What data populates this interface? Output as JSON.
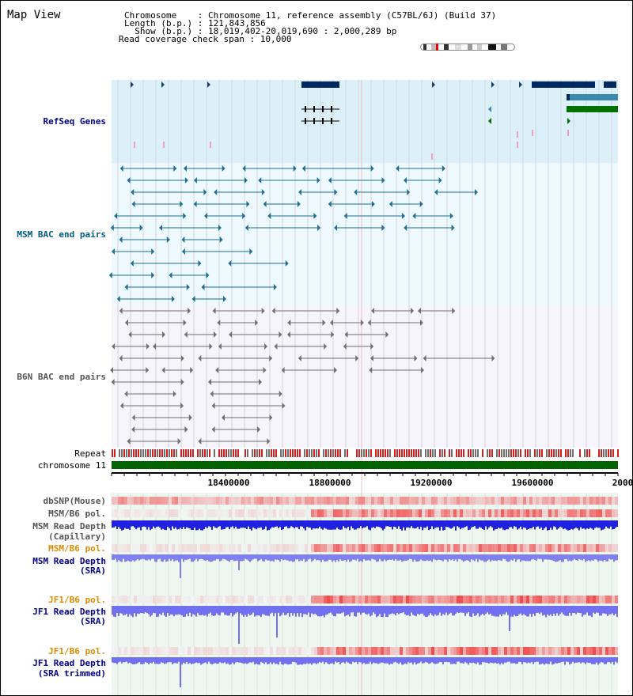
{
  "view": {
    "title": "Map View",
    "info_lines": [
      "Chromosome    : Chromosome 11, reference assembly (C57BL/6J) (Build 37)",
      "Length (b.p.) : 121,843,856",
      "  Show (b.p.) : 18,019,402-20,019,690 : 2,000,289 bp",
      "Read coverage check span : 10,000"
    ]
  },
  "tracks": {
    "refseq_label": "RefSeq Genes",
    "msm_bac_label": "MSM BAC end pairs",
    "b6n_bac_label": "B6N BAC end pairs",
    "repeat_label": "Repeat",
    "chromosome_label": "chromosome 11",
    "dbsnp_label": "dbSNP(Mouse)",
    "msm_b6_pol_label": "MSM/B6 pol.",
    "msm_depth_cap_label_1": "MSM Read Depth",
    "msm_depth_cap_label_2": "(Capillary)",
    "msm_b6_pol2_label": "MSM/B6 pol.",
    "msm_depth_sra_label_1": "MSM Read Depth",
    "msm_depth_sra_label_2": "(SRA)",
    "jf1_b6_pol_label": "JF1/B6 pol.",
    "jf1_depth_sra_label_1": "JF1 Read Depth",
    "jf1_depth_sra_label_2": "(SRA)",
    "jf1_b6_pol2_label": "JF1/B6 pol.",
    "jf1_depth_trim_label_1": "JF1 Read Depth",
    "jf1_depth_trim_label_2": "(SRA trimmed)"
  },
  "axis": {
    "ticks": [
      "18400000",
      "18800000",
      "19200000",
      "19600000",
      "2000"
    ]
  },
  "colors": {
    "refseq_bg": "#dcf0fa",
    "msm_bg": "#eefaff",
    "b6n_bg": "#f5f5fb",
    "chromosome": "#006400",
    "label_blue": "#00008b",
    "label_teal": "#005a80",
    "label_orange": "#e08a00"
  }
}
